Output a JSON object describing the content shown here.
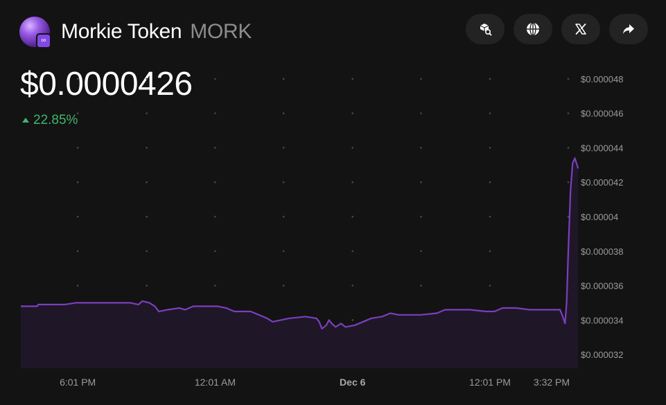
{
  "header": {
    "token_name": "Morkie Token",
    "token_symbol": "MORK",
    "actions": [
      {
        "name": "explorer-button",
        "icon": "cube-search-icon"
      },
      {
        "name": "website-button",
        "icon": "globe-icon"
      },
      {
        "name": "x-twitter-button",
        "icon": "x-logo-icon"
      },
      {
        "name": "share-button",
        "icon": "share-arrow-icon"
      }
    ]
  },
  "price": "$0.0000426",
  "change": {
    "value": "22.85%",
    "direction": "up"
  },
  "colors": {
    "background": "#131313",
    "line": "#7b3fbf",
    "positive": "#40b66b"
  },
  "chart_data": {
    "type": "area",
    "y_tick_labels": [
      "$0.000048",
      "$0.000046",
      "$0.000044",
      "$0.000042",
      "$0.00004",
      "$0.000038",
      "$0.000036",
      "$0.000034",
      "$0.000032"
    ],
    "y_ticks": [
      4.8e-05,
      4.6e-05,
      4.4e-05,
      4.2e-05,
      4e-05,
      3.8e-05,
      3.6e-05,
      3.4e-05,
      3.2e-05
    ],
    "ylim": [
      3.12e-05,
      4.92e-05
    ],
    "x_tick_labels": [
      {
        "label": "6:01 PM",
        "pos": 0.104,
        "bold": false
      },
      {
        "label": "12:01 AM",
        "pos": 0.355,
        "bold": false
      },
      {
        "label": "Dec 6",
        "pos": 0.606,
        "bold": true
      },
      {
        "label": "12:01 PM",
        "pos": 0.857,
        "bold": false
      },
      {
        "label": "3:32 PM",
        "pos": 1.0,
        "bold": false
      }
    ],
    "grid": "dotted",
    "series": [
      {
        "values": [
          [
            0.0,
            3.48e-05
          ],
          [
            0.03,
            3.48e-05
          ],
          [
            0.032,
            3.49e-05
          ],
          [
            0.08,
            3.49e-05
          ],
          [
            0.1,
            3.5e-05
          ],
          [
            0.2,
            3.5e-05
          ],
          [
            0.215,
            3.49e-05
          ],
          [
            0.222,
            3.51e-05
          ],
          [
            0.235,
            3.5e-05
          ],
          [
            0.245,
            3.48e-05
          ],
          [
            0.252,
            3.45e-05
          ],
          [
            0.268,
            3.46e-05
          ],
          [
            0.29,
            3.47e-05
          ],
          [
            0.3,
            3.46e-05
          ],
          [
            0.315,
            3.48e-05
          ],
          [
            0.36,
            3.48e-05
          ],
          [
            0.375,
            3.47e-05
          ],
          [
            0.39,
            3.45e-05
          ],
          [
            0.42,
            3.45e-05
          ],
          [
            0.435,
            3.43e-05
          ],
          [
            0.45,
            3.41e-05
          ],
          [
            0.46,
            3.39e-05
          ],
          [
            0.475,
            3.4e-05
          ],
          [
            0.49,
            3.41e-05
          ],
          [
            0.52,
            3.42e-05
          ],
          [
            0.54,
            3.41e-05
          ],
          [
            0.545,
            3.39e-05
          ],
          [
            0.55,
            3.35e-05
          ],
          [
            0.558,
            3.37e-05
          ],
          [
            0.563,
            3.4e-05
          ],
          [
            0.568,
            3.38e-05
          ],
          [
            0.575,
            3.36e-05
          ],
          [
            0.585,
            3.38e-05
          ],
          [
            0.593,
            3.36e-05
          ],
          [
            0.61,
            3.37e-05
          ],
          [
            0.625,
            3.39e-05
          ],
          [
            0.64,
            3.41e-05
          ],
          [
            0.66,
            3.42e-05
          ],
          [
            0.675,
            3.44e-05
          ],
          [
            0.69,
            3.43e-05
          ],
          [
            0.73,
            3.43e-05
          ],
          [
            0.76,
            3.44e-05
          ],
          [
            0.775,
            3.46e-05
          ],
          [
            0.82,
            3.46e-05
          ],
          [
            0.85,
            3.45e-05
          ],
          [
            0.865,
            3.45e-05
          ],
          [
            0.88,
            3.47e-05
          ],
          [
            0.905,
            3.47e-05
          ],
          [
            0.93,
            3.46e-05
          ],
          [
            0.985,
            3.46e-05
          ],
          [
            0.99,
            3.42e-05
          ],
          [
            0.994,
            3.38e-05
          ],
          [
            0.997,
            3.5e-05
          ],
          [
            1.0,
            3.8e-05
          ],
          [
            1.004,
            4.15e-05
          ],
          [
            1.008,
            4.31e-05
          ],
          [
            1.012,
            4.34e-05
          ],
          [
            1.018,
            4.28e-05
          ]
        ]
      }
    ]
  }
}
